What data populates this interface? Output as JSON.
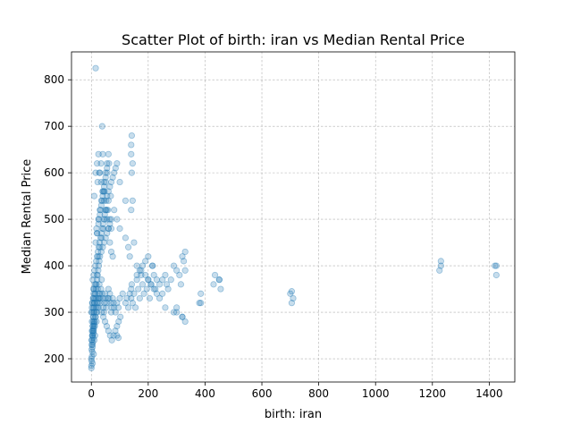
{
  "chart_data": {
    "type": "scatter",
    "title": "Scatter Plot of birth: iran vs Median Rental Price",
    "xlabel": "birth: iran",
    "ylabel": "Median Rental Price",
    "xlim": [
      -70,
      1490
    ],
    "ylim": [
      150,
      860
    ],
    "xticks": [
      0,
      200,
      400,
      600,
      800,
      1000,
      1200,
      1400
    ],
    "yticks": [
      200,
      300,
      400,
      500,
      600,
      700,
      800
    ],
    "grid": true,
    "point_color": "#1f77b4",
    "point_alpha": 0.25,
    "series": [
      {
        "x": [
          0,
          0,
          1,
          1,
          2,
          2,
          3,
          3,
          4,
          4,
          5,
          5,
          6,
          6,
          7,
          7,
          8,
          8,
          9,
          10,
          10,
          11,
          12,
          12,
          13,
          14,
          15,
          16,
          17,
          18,
          19,
          20,
          20,
          22,
          24,
          25,
          26,
          28,
          30,
          32,
          34,
          36,
          38,
          40,
          42,
          44,
          46,
          48,
          50,
          52,
          55,
          58,
          60,
          62,
          65,
          68,
          70,
          72,
          75,
          78,
          80,
          85,
          90,
          95,
          100,
          110,
          120,
          125,
          130,
          135,
          140,
          140,
          142,
          145,
          150,
          155,
          160,
          165,
          170,
          175,
          180,
          185,
          190,
          195,
          200,
          205,
          210,
          215,
          220,
          225,
          230,
          240,
          250,
          260,
          270,
          280,
          290,
          300,
          310,
          315,
          320,
          325,
          330,
          380,
          385,
          430,
          435,
          450,
          455,
          700,
          705,
          710,
          1225,
          1230,
          1420,
          1425,
          10,
          15,
          20,
          25,
          30,
          35,
          40,
          45,
          50,
          55,
          60,
          65,
          70,
          75,
          20,
          25,
          30,
          35,
          40,
          45,
          50,
          55,
          60,
          15,
          20,
          25,
          30,
          35,
          40,
          45,
          50,
          55,
          22,
          28,
          34,
          40,
          46,
          52,
          58,
          64,
          70,
          24,
          30,
          36,
          42,
          48,
          54,
          60,
          140,
          140,
          142,
          142,
          145,
          18,
          26,
          32,
          38,
          44,
          50,
          56,
          62,
          68,
          80,
          90,
          100,
          120,
          130,
          135,
          0,
          2,
          4,
          6,
          8,
          10,
          12,
          5,
          8,
          11,
          14,
          17,
          20,
          23,
          26,
          29,
          32,
          35,
          38,
          41,
          44,
          47,
          50,
          55,
          60,
          65,
          70,
          75,
          80,
          85,
          90,
          100,
          120,
          150,
          160,
          170,
          180,
          190,
          200,
          210,
          220,
          230,
          240,
          260,
          290,
          300,
          320,
          330,
          3,
          6,
          9,
          12,
          15,
          18,
          21,
          24,
          27,
          30,
          36,
          42,
          48,
          54,
          60,
          66,
          72,
          78,
          84,
          90,
          96,
          102,
          140,
          145,
          160,
          175,
          200,
          215,
          250,
          265,
          300,
          320,
          330,
          385,
          450,
          705,
          1230,
          1425,
          1,
          2,
          3,
          4,
          5,
          6,
          7,
          8,
          9,
          10,
          12,
          14,
          16,
          18,
          20,
          22,
          24,
          26,
          28,
          30,
          35,
          40,
          45,
          50,
          55,
          60,
          65,
          70,
          90,
          95,
          0,
          1,
          2,
          3,
          4,
          5,
          6,
          7,
          8,
          9
        ],
        "y": [
          180,
          200,
          220,
          240,
          260,
          280,
          300,
          320,
          190,
          230,
          250,
          270,
          290,
          310,
          330,
          350,
          210,
          260,
          280,
          240,
          300,
          320,
          270,
          340,
          250,
          290,
          360,
          310,
          330,
          280,
          300,
          320,
          380,
          350,
          330,
          310,
          340,
          360,
          330,
          320,
          350,
          370,
          340,
          330,
          310,
          300,
          320,
          340,
          330,
          310,
          320,
          330,
          350,
          330,
          340,
          320,
          300,
          310,
          330,
          320,
          310,
          300,
          320,
          310,
          330,
          340,
          320,
          330,
          310,
          340,
          350,
          330,
          360,
          320,
          340,
          310,
          370,
          350,
          330,
          390,
          360,
          340,
          380,
          350,
          370,
          330,
          360,
          400,
          380,
          350,
          370,
          360,
          340,
          380,
          350,
          370,
          400,
          390,
          380,
          360,
          420,
          410,
          390,
          320,
          340,
          360,
          380,
          370,
          350,
          340,
          320,
          330,
          390,
          410,
          400,
          380,
          550,
          600,
          620,
          640,
          600,
          580,
          560,
          540,
          520,
          500,
          480,
          450,
          430,
          420,
          470,
          500,
          520,
          540,
          560,
          580,
          600,
          620,
          640,
          450,
          470,
          490,
          510,
          530,
          550,
          570,
          590,
          610,
          580,
          600,
          620,
          640,
          560,
          540,
          520,
          500,
          480,
          420,
          440,
          460,
          480,
          500,
          520,
          540,
          640,
          660,
          680,
          600,
          620,
          480,
          500,
          520,
          540,
          560,
          580,
          600,
          620,
          550,
          520,
          500,
          480,
          460,
          440,
          420,
          300,
          310,
          320,
          330,
          340,
          350,
          360,
          370,
          380,
          390,
          400,
          410,
          420,
          430,
          440,
          450,
          460,
          470,
          480,
          490,
          500,
          510,
          520,
          550,
          560,
          570,
          580,
          590,
          600,
          610,
          620,
          580,
          540,
          450,
          380,
          390,
          400,
          410,
          370,
          360,
          350,
          340,
          330,
          310,
          300,
          310,
          290,
          280,
          250,
          260,
          270,
          280,
          290,
          300,
          310,
          320,
          330,
          340,
          300,
          290,
          280,
          270,
          260,
          250,
          240,
          250,
          260,
          270,
          280,
          290,
          520,
          540,
          400,
          380,
          420,
          400,
          370,
          360,
          300,
          290,
          430,
          320,
          370,
          345,
          400,
          400,
          230,
          240,
          250,
          260,
          270,
          280,
          290,
          300,
          310,
          320,
          330,
          340,
          350,
          360,
          370,
          380,
          390,
          400,
          410,
          420,
          430,
          440,
          450,
          460,
          470,
          480,
          490,
          500,
          250,
          245,
          185,
          195,
          205,
          215,
          225,
          235,
          245,
          255,
          265,
          275
        ]
      },
      {
        "x": [
          38
        ],
        "y": [
          700
        ]
      },
      {
        "x": [
          15
        ],
        "y": [
          825
        ]
      }
    ]
  }
}
